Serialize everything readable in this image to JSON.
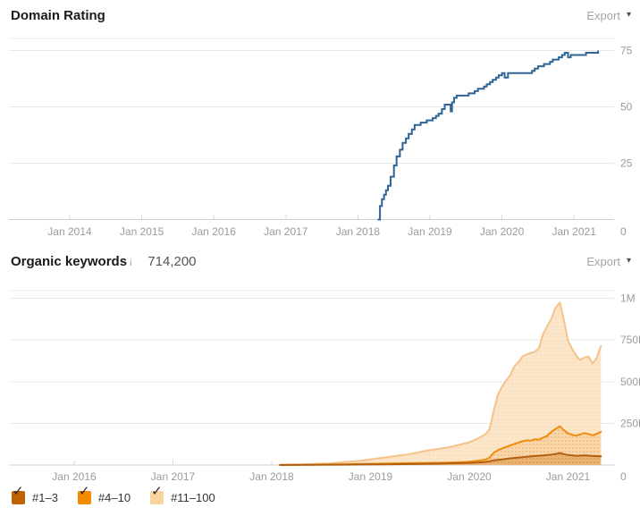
{
  "icons": {
    "caret_down": "▾",
    "check": "✓",
    "info": "i"
  },
  "colors": {
    "dr_line": "#2f6496",
    "grid": "#e8e8e8",
    "axis": "#cfcfcf",
    "tick": "#d4d4d4",
    "tick_label": "#9b9b9b"
  },
  "dr_panel": {
    "title": "Domain Rating",
    "export_label": "Export"
  },
  "kw_panel": {
    "title": "Organic keywords",
    "value": "714,200",
    "export_label": "Export"
  },
  "legend": [
    {
      "label": "#1–3",
      "color": "#bf6204",
      "checked": true
    },
    {
      "label": "#4–10",
      "color": "#f28b00",
      "checked": true
    },
    {
      "label": "#11–100",
      "color": "#fbd49c",
      "checked": true
    }
  ],
  "chart_data": [
    {
      "type": "line",
      "title": "Domain Rating",
      "x_tick_labels": [
        "Jan 2014",
        "Jan 2015",
        "Jan 2016",
        "Jan 2017",
        "Jan 2018",
        "Jan 2019",
        "Jan 2020",
        "Jan 2021"
      ],
      "y_tick_labels": [
        "75",
        "50",
        "25",
        "0"
      ],
      "y_ticks": [
        75,
        50,
        25,
        0
      ],
      "ylim": [
        0,
        80
      ],
      "grid": true,
      "series": [
        {
          "name": "Domain Rating",
          "color": "#2f6496",
          "interpolation": "step-after",
          "points": [
            [
              "2018-04-10",
              0
            ],
            [
              "2018-04-22",
              6
            ],
            [
              "2018-05-01",
              9
            ],
            [
              "2018-05-12",
              11
            ],
            [
              "2018-05-22",
              13
            ],
            [
              "2018-06-01",
              15
            ],
            [
              "2018-06-15",
              19
            ],
            [
              "2018-07-01",
              24
            ],
            [
              "2018-07-15",
              28
            ],
            [
              "2018-08-01",
              31
            ],
            [
              "2018-08-15",
              34
            ],
            [
              "2018-09-01",
              36
            ],
            [
              "2018-09-15",
              38
            ],
            [
              "2018-10-01",
              40
            ],
            [
              "2018-10-15",
              42
            ],
            [
              "2018-11-01",
              42
            ],
            [
              "2018-11-15",
              43
            ],
            [
              "2018-12-01",
              43
            ],
            [
              "2018-12-15",
              44
            ],
            [
              "2019-01-01",
              44
            ],
            [
              "2019-01-15",
              45
            ],
            [
              "2019-02-01",
              46
            ],
            [
              "2019-02-15",
              47
            ],
            [
              "2019-03-01",
              49
            ],
            [
              "2019-03-15",
              51
            ],
            [
              "2019-04-01",
              51
            ],
            [
              "2019-04-15",
              48
            ],
            [
              "2019-04-22",
              52
            ],
            [
              "2019-05-01",
              54
            ],
            [
              "2019-05-15",
              55
            ],
            [
              "2019-06-01",
              55
            ],
            [
              "2019-07-01",
              55
            ],
            [
              "2019-07-15",
              56
            ],
            [
              "2019-08-01",
              56
            ],
            [
              "2019-08-15",
              57
            ],
            [
              "2019-09-01",
              58
            ],
            [
              "2019-10-01",
              59
            ],
            [
              "2019-10-15",
              60
            ],
            [
              "2019-11-01",
              61
            ],
            [
              "2019-11-15",
              62
            ],
            [
              "2019-12-01",
              63
            ],
            [
              "2019-12-15",
              64
            ],
            [
              "2020-01-01",
              65
            ],
            [
              "2020-01-15",
              63
            ],
            [
              "2020-02-01",
              65
            ],
            [
              "2020-03-01",
              65
            ],
            [
              "2020-04-01",
              65
            ],
            [
              "2020-05-01",
              65
            ],
            [
              "2020-06-01",
              66
            ],
            [
              "2020-06-15",
              67
            ],
            [
              "2020-07-01",
              68
            ],
            [
              "2020-08-01",
              69
            ],
            [
              "2020-09-01",
              70
            ],
            [
              "2020-09-15",
              71
            ],
            [
              "2020-10-01",
              71
            ],
            [
              "2020-10-15",
              72
            ],
            [
              "2020-11-01",
              73
            ],
            [
              "2020-11-15",
              74
            ],
            [
              "2020-12-01",
              72
            ],
            [
              "2020-12-15",
              73
            ],
            [
              "2021-01-01",
              73
            ],
            [
              "2021-02-01",
              73
            ],
            [
              "2021-03-01",
              74
            ],
            [
              "2021-04-01",
              74
            ],
            [
              "2021-04-20",
              74
            ],
            [
              "2021-05-01",
              75
            ]
          ]
        }
      ]
    },
    {
      "type": "area",
      "title": "Organic keywords",
      "current_total": "714,200",
      "x_tick_labels": [
        "Jan 2016",
        "Jan 2017",
        "Jan 2018",
        "Jan 2019",
        "Jan 2020",
        "Jan 2021"
      ],
      "y_tick_labels": [
        "1M",
        "750K",
        "500K",
        "250K",
        "0"
      ],
      "y_ticks": [
        1000,
        750,
        500,
        250,
        0
      ],
      "y_unit": "thousand keywords",
      "ylim": [
        0,
        1045
      ],
      "grid": true,
      "legend_position": "bottom-left",
      "note": "stacked area chart; each series' points are the plotted cumulative upper boundary (in thousands of keywords)",
      "series": [
        {
          "name": "#1–3",
          "stroke": "#b2600f",
          "fill": "#eab273",
          "points": [
            [
              "2018-02",
              0.2
            ],
            [
              "2018-06",
              1
            ],
            [
              "2018-10",
              2
            ],
            [
              "2018-12",
              3
            ],
            [
              "2019-03",
              4
            ],
            [
              "2019-06",
              6
            ],
            [
              "2019-09",
              8
            ],
            [
              "2019-12",
              11
            ],
            [
              "2020-01",
              13
            ],
            [
              "2020-02",
              15
            ],
            [
              "2020-03",
              18
            ],
            [
              "2020-04",
              28
            ],
            [
              "2020-05",
              34
            ],
            [
              "2020-06",
              40
            ],
            [
              "2020-07",
              45
            ],
            [
              "2020-08",
              50
            ],
            [
              "2020-09",
              54
            ],
            [
              "2020-10",
              58
            ],
            [
              "2020-11",
              62
            ],
            [
              "2020-11-15",
              66
            ],
            [
              "2020-12",
              72
            ],
            [
              "2020-12-15",
              66
            ],
            [
              "2021-01",
              60
            ],
            [
              "2021-02",
              55
            ],
            [
              "2021-03",
              58
            ],
            [
              "2021-04",
              54
            ],
            [
              "2021-05",
              52
            ]
          ]
        },
        {
          "name": "#4–10",
          "stroke": "#ef8c10",
          "fill": "#f9d6aa",
          "points": [
            [
              "2018-02",
              0.5
            ],
            [
              "2018-04",
              1
            ],
            [
              "2018-06",
              2
            ],
            [
              "2018-08",
              3
            ],
            [
              "2018-10",
              5
            ],
            [
              "2018-12",
              7
            ],
            [
              "2019-02",
              8
            ],
            [
              "2019-04",
              10
            ],
            [
              "2019-06",
              11
            ],
            [
              "2019-08",
              13
            ],
            [
              "2019-10",
              14
            ],
            [
              "2019-12",
              17
            ],
            [
              "2020-01",
              20
            ],
            [
              "2020-02",
              25
            ],
            [
              "2020-03",
              32
            ],
            [
              "2020-03-15",
              45
            ],
            [
              "2020-04",
              75
            ],
            [
              "2020-04-15",
              88
            ],
            [
              "2020-05",
              100
            ],
            [
              "2020-06",
              118
            ],
            [
              "2020-07",
              135
            ],
            [
              "2020-07-15",
              142
            ],
            [
              "2020-08",
              148
            ],
            [
              "2020-08-15",
              146
            ],
            [
              "2020-09",
              155
            ],
            [
              "2020-09-15",
              152
            ],
            [
              "2020-10",
              165
            ],
            [
              "2020-10-15",
              175
            ],
            [
              "2020-11",
              200
            ],
            [
              "2020-11-15",
              215
            ],
            [
              "2020-12",
              232
            ],
            [
              "2020-12-15",
              210
            ],
            [
              "2021-01",
              190
            ],
            [
              "2021-01-15",
              182
            ],
            [
              "2021-02",
              176
            ],
            [
              "2021-03",
              192
            ],
            [
              "2021-03-15",
              186
            ],
            [
              "2021-04",
              178
            ],
            [
              "2021-04-15",
              186
            ],
            [
              "2021-05",
              200
            ]
          ]
        },
        {
          "name": "#11–100",
          "stroke": "#f5c28c",
          "fill": "#fce6c9",
          "points": [
            [
              "2018-02",
              1
            ],
            [
              "2018-03",
              2
            ],
            [
              "2018-04",
              3
            ],
            [
              "2018-05",
              4
            ],
            [
              "2018-06",
              6
            ],
            [
              "2018-07",
              8
            ],
            [
              "2018-08",
              10
            ],
            [
              "2018-09",
              14
            ],
            [
              "2018-10",
              18
            ],
            [
              "2018-11",
              22
            ],
            [
              "2018-12",
              27
            ],
            [
              "2019-01",
              33
            ],
            [
              "2019-02",
              40
            ],
            [
              "2019-03",
              47
            ],
            [
              "2019-04",
              54
            ],
            [
              "2019-05",
              60
            ],
            [
              "2019-06",
              68
            ],
            [
              "2019-07",
              78
            ],
            [
              "2019-08",
              88
            ],
            [
              "2019-09",
              95
            ],
            [
              "2019-10",
              102
            ],
            [
              "2019-11",
              112
            ],
            [
              "2019-12",
              124
            ],
            [
              "2020-01",
              136
            ],
            [
              "2020-02",
              158
            ],
            [
              "2020-03",
              185
            ],
            [
              "2020-03-15",
              215
            ],
            [
              "2020-04",
              330
            ],
            [
              "2020-04-15",
              420
            ],
            [
              "2020-05",
              470
            ],
            [
              "2020-05-15",
              505
            ],
            [
              "2020-06",
              540
            ],
            [
              "2020-06-15",
              590
            ],
            [
              "2020-07",
              620
            ],
            [
              "2020-07-15",
              650
            ],
            [
              "2020-08",
              665
            ],
            [
              "2020-08-15",
              672
            ],
            [
              "2020-09",
              680
            ],
            [
              "2020-09-15",
              700
            ],
            [
              "2020-10",
              790
            ],
            [
              "2020-10-15",
              830
            ],
            [
              "2020-11",
              880
            ],
            [
              "2020-11-15",
              940
            ],
            [
              "2020-12",
              975
            ],
            [
              "2020-12-15",
              880
            ],
            [
              "2021-01",
              745
            ],
            [
              "2021-01-15",
              700
            ],
            [
              "2021-02",
              655
            ],
            [
              "2021-02-15",
              630
            ],
            [
              "2021-03",
              645
            ],
            [
              "2021-03-15",
              652
            ],
            [
              "2021-04",
              608
            ],
            [
              "2021-04-15",
              640
            ],
            [
              "2021-05",
              714
            ]
          ]
        }
      ]
    }
  ]
}
